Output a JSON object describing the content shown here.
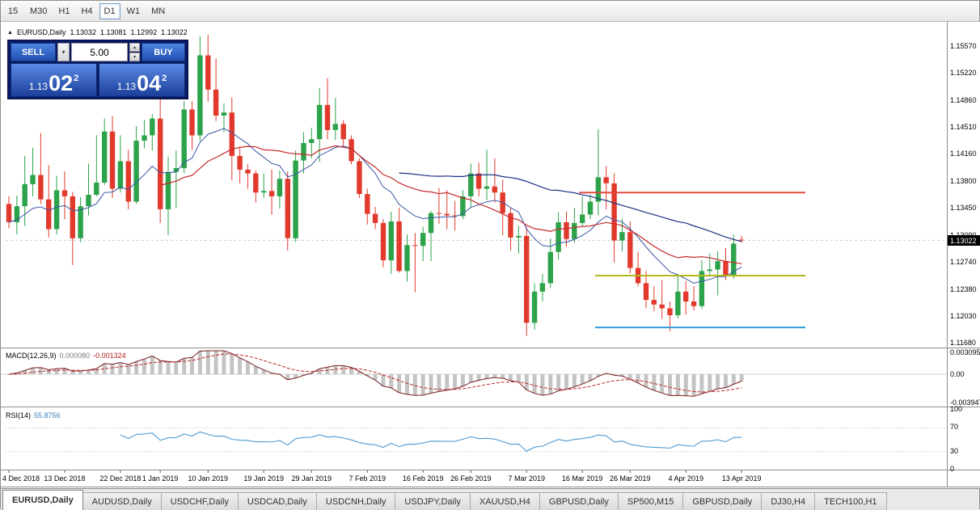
{
  "toolbar": {
    "timeframes": [
      {
        "label": "15",
        "active": false
      },
      {
        "label": "M30",
        "active": false
      },
      {
        "label": "H1",
        "active": false
      },
      {
        "label": "H4",
        "active": false
      },
      {
        "label": "D1",
        "active": true
      },
      {
        "label": "W1",
        "active": false
      },
      {
        "label": "MN",
        "active": false
      }
    ]
  },
  "chart_header": {
    "symbol": "EURUSD,Daily",
    "open": "1.13032",
    "high": "1.13081",
    "low": "1.12992",
    "close": "1.13022"
  },
  "trade_panel": {
    "sell_label": "SELL",
    "buy_label": "BUY",
    "volume": "5.00",
    "sell_price_prefix": "1.13",
    "sell_price_big": "02",
    "sell_price_sup": "2",
    "buy_price_prefix": "1.13",
    "buy_price_big": "04",
    "buy_price_sup": "2"
  },
  "price_scale": {
    "labels": [
      "1.15570",
      "1.15220",
      "1.14860",
      "1.14510",
      "1.14160",
      "1.13800",
      "1.13450",
      "1.13090",
      "1.12740",
      "1.12380",
      "1.12030",
      "1.11680"
    ],
    "current_bid": "1.13022"
  },
  "macd_panel": {
    "name": "MACD(12,26,9)",
    "main_value": "0.000080",
    "signal_value": "-0.001324",
    "scale_top": "0.003095",
    "scale_mid": "0.00",
    "scale_bottom": "-0.003947"
  },
  "rsi_panel": {
    "name": "RSI(14)",
    "value": "55.8756",
    "scale": [
      {
        "text": "100",
        "value": 100
      },
      {
        "text": "70",
        "value": 70
      },
      {
        "text": "30",
        "value": 30
      },
      {
        "text": "0",
        "value": 0
      }
    ]
  },
  "date_axis": {
    "labels": [
      {
        "text": "4 Dec 2018",
        "index": 0
      },
      {
        "text": "13 Dec 2018",
        "index": 7
      },
      {
        "text": "22 Dec 2018",
        "index": 14
      },
      {
        "text": "1 Jan 2019",
        "index": 19
      },
      {
        "text": "10 Jan 2019",
        "index": 25
      },
      {
        "text": "19 Jan 2019",
        "index": 32
      },
      {
        "text": "29 Jan 2019",
        "index": 38
      },
      {
        "text": "7 Feb 2019",
        "index": 45
      },
      {
        "text": "16 Feb 2019",
        "index": 52
      },
      {
        "text": "26 Feb 2019",
        "index": 58
      },
      {
        "text": "7 Mar 2019",
        "index": 65
      },
      {
        "text": "16 Mar 2019",
        "index": 72
      },
      {
        "text": "26 Mar 2019",
        "index": 78
      },
      {
        "text": "4 Apr 2019",
        "index": 85
      },
      {
        "text": "13 Apr 2019",
        "index": 92
      }
    ]
  },
  "tabs": [
    {
      "label": "EURUSD,Daily",
      "active": true
    },
    {
      "label": "AUDUSD,Daily",
      "active": false
    },
    {
      "label": "USDCHF,Daily",
      "active": false
    },
    {
      "label": "USDCAD,Daily",
      "active": false
    },
    {
      "label": "USDCNH,Daily",
      "active": false
    },
    {
      "label": "USDJPY,Daily",
      "active": false
    },
    {
      "label": "XAUUSD,H4",
      "active": false
    },
    {
      "label": "GBPUSD,Daily",
      "active": false
    },
    {
      "label": "SP500,M15",
      "active": false
    },
    {
      "label": "GBPUSD,Daily",
      "active": false
    },
    {
      "label": "DJ30,H4",
      "active": false
    },
    {
      "label": "TECH100,H1",
      "active": false
    }
  ],
  "chart_data": {
    "type": "candlestick",
    "symbol": "EURUSD",
    "timeframe": "Daily",
    "colors": {
      "up": "#2ca24a",
      "down": "#e13a2d",
      "ma_fast": "#3a57a8",
      "ma_mid": "#c42a2a",
      "ma_slow": "#1c2e86",
      "macd_hist": "#c4c4c4",
      "macd_main": "#7a1f1f",
      "macd_signal": "#c02626",
      "rsi": "#4e9bd4"
    },
    "ma_overlays": [
      {
        "type": "ema",
        "period": 12,
        "color_key": "ma_fast"
      },
      {
        "type": "sma",
        "period": 20,
        "color_key": "ma_mid"
      },
      {
        "type": "sma",
        "period": 50,
        "color_key": "ma_slow"
      }
    ],
    "hlines": [
      {
        "price": 1.1365,
        "color": "#e0493c",
        "start_index": 72
      },
      {
        "price": 1.1256,
        "color": "#b3b81f",
        "start_index": 74
      },
      {
        "price": 1.1188,
        "color": "#2f9cd9",
        "start_index": 74
      }
    ],
    "current_bid": 1.13022,
    "indicators": {
      "macd": {
        "fast": 12,
        "slow": 26,
        "signal": 9,
        "main": 8e-05,
        "signal_value": -0.001324,
        "scale": [
          -0.003947,
          0.003095
        ]
      },
      "rsi": {
        "period": 14,
        "value": 55.8756,
        "levels": [
          70,
          30
        ],
        "scale": [
          0,
          100
        ]
      }
    },
    "ohlc": [
      [
        "4 Dec 2018",
        1.135,
        1.136,
        1.1318,
        1.1326
      ],
      [
        "5 Dec 2018",
        1.1326,
        1.1361,
        1.131,
        1.1347
      ],
      [
        "6 Dec 2018",
        1.1347,
        1.1413,
        1.1321,
        1.1376
      ],
      [
        "7 Dec 2018",
        1.1376,
        1.1424,
        1.136,
        1.1388
      ],
      [
        "10 Dec 2018",
        1.1388,
        1.1443,
        1.135,
        1.1356
      ],
      [
        "11 Dec 2018",
        1.1356,
        1.1401,
        1.1306,
        1.1317
      ],
      [
        "12 Dec 2018",
        1.1317,
        1.1387,
        1.131,
        1.1368
      ],
      [
        "13 Dec 2018",
        1.1368,
        1.1393,
        1.133,
        1.136
      ],
      [
        "14 Dec 2018",
        1.136,
        1.1366,
        1.127,
        1.1305
      ],
      [
        "17 Dec 2018",
        1.1305,
        1.1359,
        1.13,
        1.1347
      ],
      [
        "18 Dec 2018",
        1.1347,
        1.1403,
        1.1335,
        1.1362
      ],
      [
        "19 Dec 2018",
        1.1362,
        1.144,
        1.136,
        1.1378
      ],
      [
        "20 Dec 2018",
        1.1378,
        1.1462,
        1.1375,
        1.1445
      ],
      [
        "21 Dec 2018",
        1.1445,
        1.1465,
        1.1358,
        1.137
      ],
      [
        "24 Dec 2018",
        1.137,
        1.144,
        1.1365,
        1.1406
      ],
      [
        "26 Dec 2018",
        1.1406,
        1.1421,
        1.1343,
        1.1353
      ],
      [
        "27 Dec 2018",
        1.1353,
        1.1452,
        1.135,
        1.1433
      ],
      [
        "28 Dec 2018",
        1.1433,
        1.146,
        1.1423,
        1.144
      ],
      [
        "31 Dec 2018",
        1.144,
        1.1468,
        1.142,
        1.1462
      ],
      [
        "2 Jan 2019",
        1.1462,
        1.1497,
        1.1325,
        1.1343
      ],
      [
        "3 Jan 2019",
        1.1343,
        1.1412,
        1.1309,
        1.1392
      ],
      [
        "4 Jan 2019",
        1.1392,
        1.142,
        1.1345,
        1.1397
      ],
      [
        "7 Jan 2019",
        1.1397,
        1.1485,
        1.139,
        1.1474
      ],
      [
        "8 Jan 2019",
        1.1474,
        1.1485,
        1.1421,
        1.144
      ],
      [
        "9 Jan 2019",
        1.144,
        1.157,
        1.1433,
        1.1545
      ],
      [
        "10 Jan 2019",
        1.1545,
        1.1572,
        1.1484,
        1.15
      ],
      [
        "11 Jan 2019",
        1.15,
        1.1541,
        1.1459,
        1.1466
      ],
      [
        "14 Jan 2019",
        1.1466,
        1.1482,
        1.1444,
        1.147
      ],
      [
        "15 Jan 2019",
        1.147,
        1.149,
        1.1381,
        1.1413
      ],
      [
        "16 Jan 2019",
        1.1413,
        1.1425,
        1.1377,
        1.1395
      ],
      [
        "17 Jan 2019",
        1.1395,
        1.1402,
        1.137,
        1.139
      ],
      [
        "18 Jan 2019",
        1.139,
        1.1394,
        1.1352,
        1.1365
      ],
      [
        "21 Jan 2019",
        1.1365,
        1.139,
        1.1358,
        1.1367
      ],
      [
        "22 Jan 2019",
        1.1367,
        1.1395,
        1.1336,
        1.136
      ],
      [
        "23 Jan 2019",
        1.136,
        1.1394,
        1.1344,
        1.1383
      ],
      [
        "24 Jan 2019",
        1.1383,
        1.1393,
        1.1289,
        1.1305
      ],
      [
        "25 Jan 2019",
        1.1305,
        1.142,
        1.13,
        1.1407
      ],
      [
        "28 Jan 2019",
        1.1407,
        1.1444,
        1.139,
        1.143
      ],
      [
        "29 Jan 2019",
        1.143,
        1.145,
        1.141,
        1.1435
      ],
      [
        "30 Jan 2019",
        1.1435,
        1.1502,
        1.1405,
        1.148
      ],
      [
        "31 Jan 2019",
        1.148,
        1.1515,
        1.1435,
        1.1447
      ],
      [
        "1 Feb 2019",
        1.1447,
        1.1489,
        1.1434,
        1.1455
      ],
      [
        "4 Feb 2019",
        1.1455,
        1.146,
        1.1424,
        1.1435
      ],
      [
        "5 Feb 2019",
        1.1435,
        1.144,
        1.1402,
        1.1406
      ],
      [
        "6 Feb 2019",
        1.1406,
        1.141,
        1.1358,
        1.1363
      ],
      [
        "7 Feb 2019",
        1.1363,
        1.137,
        1.1323,
        1.1337
      ],
      [
        "8 Feb 2019",
        1.1337,
        1.1346,
        1.1317,
        1.1325
      ],
      [
        "11 Feb 2019",
        1.1325,
        1.133,
        1.1267,
        1.1276
      ],
      [
        "12 Feb 2019",
        1.1276,
        1.134,
        1.1258,
        1.1327
      ],
      [
        "13 Feb 2019",
        1.1327,
        1.1345,
        1.126,
        1.1262
      ],
      [
        "14 Feb 2019",
        1.1262,
        1.131,
        1.1248,
        1.1296
      ],
      [
        "15 Feb 2019",
        1.1296,
        1.1312,
        1.1234,
        1.1295
      ],
      [
        "18 Feb 2019",
        1.1295,
        1.132,
        1.1275,
        1.1312
      ],
      [
        "19 Feb 2019",
        1.1312,
        1.1341,
        1.1275,
        1.1338
      ],
      [
        "20 Feb 2019",
        1.1338,
        1.1371,
        1.1324,
        1.1337
      ],
      [
        "21 Feb 2019",
        1.1337,
        1.1368,
        1.1317,
        1.1335
      ],
      [
        "22 Feb 2019",
        1.1335,
        1.1354,
        1.1315,
        1.1334
      ],
      [
        "25 Feb 2019",
        1.1334,
        1.1368,
        1.133,
        1.136
      ],
      [
        "26 Feb 2019",
        1.136,
        1.1403,
        1.1345,
        1.139
      ],
      [
        "27 Feb 2019",
        1.139,
        1.1404,
        1.136,
        1.137
      ],
      [
        "28 Feb 2019",
        1.137,
        1.1421,
        1.1355,
        1.1373
      ],
      [
        "1 Mar 2019",
        1.1373,
        1.141,
        1.1352,
        1.1365
      ],
      [
        "4 Mar 2019",
        1.1365,
        1.1382,
        1.1309,
        1.1338
      ],
      [
        "5 Mar 2019",
        1.1338,
        1.1345,
        1.1289,
        1.1306
      ],
      [
        "6 Mar 2019",
        1.1306,
        1.1321,
        1.1285,
        1.1308
      ],
      [
        "7 Mar 2019",
        1.1308,
        1.132,
        1.1177,
        1.1194
      ],
      [
        "8 Mar 2019",
        1.1194,
        1.1246,
        1.1185,
        1.1235
      ],
      [
        "11 Mar 2019",
        1.1235,
        1.1258,
        1.1222,
        1.1246
      ],
      [
        "12 Mar 2019",
        1.1246,
        1.1305,
        1.124,
        1.1287
      ],
      [
        "13 Mar 2019",
        1.1287,
        1.1339,
        1.1277,
        1.1326
      ],
      [
        "14 Mar 2019",
        1.1326,
        1.134,
        1.1294,
        1.1304
      ],
      [
        "15 Mar 2019",
        1.1304,
        1.1345,
        1.1299,
        1.1325
      ],
      [
        "18 Mar 2019",
        1.1325,
        1.136,
        1.132,
        1.1336
      ],
      [
        "19 Mar 2019",
        1.1336,
        1.1362,
        1.133,
        1.1353
      ],
      [
        "20 Mar 2019",
        1.1353,
        1.1448,
        1.1335,
        1.1385
      ],
      [
        "21 Mar 2019",
        1.1385,
        1.14,
        1.1343,
        1.1377
      ],
      [
        "22 Mar 2019",
        1.1377,
        1.139,
        1.1273,
        1.1302
      ],
      [
        "25 Mar 2019",
        1.1302,
        1.133,
        1.1288,
        1.1313
      ],
      [
        "26 Mar 2019",
        1.1313,
        1.1327,
        1.1259,
        1.1266
      ],
      [
        "27 Mar 2019",
        1.1266,
        1.1287,
        1.1242,
        1.1246
      ],
      [
        "28 Mar 2019",
        1.1246,
        1.1262,
        1.1213,
        1.1224
      ],
      [
        "29 Mar 2019",
        1.1224,
        1.1242,
        1.1209,
        1.1218
      ],
      [
        "1 Apr 2019",
        1.1218,
        1.125,
        1.1199,
        1.1213
      ],
      [
        "2 Apr 2019",
        1.1213,
        1.1222,
        1.1183,
        1.1204
      ],
      [
        "3 Apr 2019",
        1.1204,
        1.1255,
        1.12,
        1.1235
      ],
      [
        "4 Apr 2019",
        1.1235,
        1.1249,
        1.1205,
        1.1222
      ],
      [
        "5 Apr 2019",
        1.1222,
        1.1242,
        1.121,
        1.1216
      ],
      [
        "8 Apr 2019",
        1.1216,
        1.1276,
        1.1212,
        1.1262
      ],
      [
        "9 Apr 2019",
        1.1262,
        1.1285,
        1.1255,
        1.1264
      ],
      [
        "10 Apr 2019",
        1.1264,
        1.1288,
        1.123,
        1.1275
      ],
      [
        "11 Apr 2019",
        1.1275,
        1.1292,
        1.125,
        1.1255
      ],
      [
        "12 Apr 2019",
        1.1255,
        1.131,
        1.1252,
        1.1298
      ],
      [
        "15 Apr 2019",
        1.13032,
        1.13081,
        1.12992,
        1.13022
      ]
    ]
  }
}
